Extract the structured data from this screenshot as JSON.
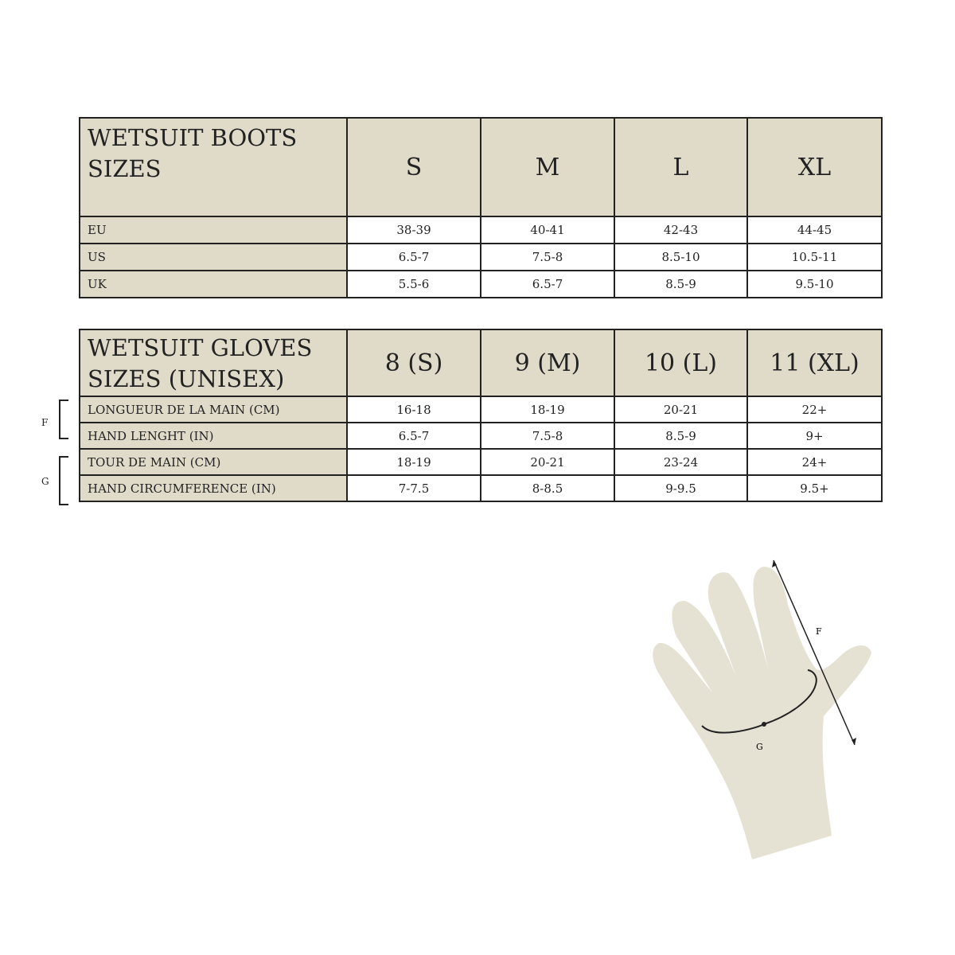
{
  "boots": {
    "title_line1": "WETSUIT BOOTS",
    "title_line2": "SIZES",
    "sizes": [
      "S",
      "M",
      "L",
      "XL"
    ],
    "rows": [
      {
        "label": "EU",
        "values": [
          "38-39",
          "40-41",
          "42-43",
          "44-45"
        ]
      },
      {
        "label": "US",
        "values": [
          "6.5-7",
          "7.5-8",
          "8.5-10",
          "10.5-11"
        ]
      },
      {
        "label": "UK",
        "values": [
          "5.5-6",
          "6.5-7",
          "8.5-9",
          "9.5-10"
        ]
      }
    ]
  },
  "gloves": {
    "title_line1": "WETSUIT GLOVES",
    "title_line2": "SIZES (UNISEX)",
    "sizes": [
      "8 (S)",
      "9 (M)",
      "10 (L)",
      "11 (XL)"
    ],
    "rows": [
      {
        "label": "LONGUEUR DE LA MAIN (CM)",
        "values": [
          "16-18",
          "18-19",
          "20-21",
          "22+"
        ]
      },
      {
        "label": "HAND LENGHT (IN)",
        "values": [
          "6.5-7",
          "7.5-8",
          "8.5-9",
          "9+"
        ]
      },
      {
        "label": "TOUR DE MAIN (CM)",
        "values": [
          "18-19",
          "20-21",
          "23-24",
          "24+"
        ]
      },
      {
        "label": "HAND CIRCUMFERENCE (IN)",
        "values": [
          "7-7.5",
          "8-8.5",
          "9-9.5",
          "9.5+"
        ]
      }
    ],
    "group_f": "F",
    "group_g": "G"
  },
  "diagram": {
    "label_f": "F",
    "label_g": "G",
    "hand_color": "#e6e2d3"
  },
  "colors": {
    "header_bg": "#e0dbc9",
    "border": "#222222"
  }
}
